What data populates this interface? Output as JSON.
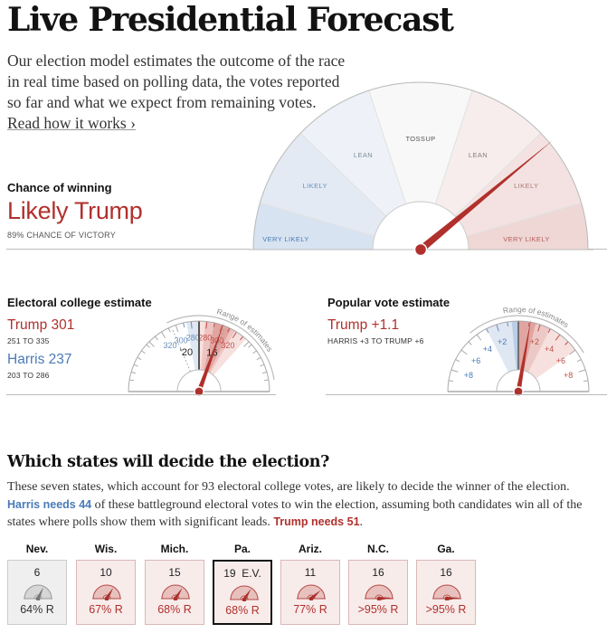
{
  "header": {
    "title": "Live Presidential Forecast",
    "intro": "Our election model estimates the outcome of the race in real time based on polling data, the votes reported so far and what we expect from remaining votes.",
    "read_link": "Read how it works ›"
  },
  "chance": {
    "label": "Chance of winning",
    "value": "Likely Trump",
    "subtitle": "89% CHANCE OF VICTORY",
    "trump_probability": 0.89,
    "gauge_sections": [
      "VERY LIKELY",
      "LIKELY",
      "LEAN",
      "TOSSUP",
      "LEAN",
      "LIKELY",
      "VERY LIKELY"
    ]
  },
  "electoral": {
    "label": "Electoral college estimate",
    "trump": "Trump 301",
    "trump_range": "251 TO 335",
    "harris": "Harris 237",
    "harris_range": "203 TO 286",
    "range_label": "Range of estimates",
    "ticks_harris": [
      "280",
      "300",
      "320"
    ],
    "ticks_trump": [
      "280",
      "300",
      "320"
    ],
    "marker_2020": "'20",
    "marker_2016": "16",
    "trump_estimate": 301,
    "trump_low": 251,
    "trump_high": 335
  },
  "popular": {
    "label": "Popular vote estimate",
    "trump": "Trump +1.1",
    "range": "HARRIS +3 TO TRUMP +6",
    "range_label": "Range of estimates",
    "ticks_harris": [
      "+2",
      "+4",
      "+6",
      "+8"
    ],
    "ticks_trump": [
      "+2",
      "+4",
      "+6",
      "+8"
    ],
    "estimate": 1.1,
    "low": -3,
    "high": 6
  },
  "states_section": {
    "title": "Which states will decide the election?",
    "desc_1": "These seven states, which account for 93 electoral college votes, are likely to decide the winner of the election. ",
    "harris_needs": "Harris needs 44",
    "desc_2": " of these battleground electoral votes to win the election, assuming both candidates win all of the states where polls show them with significant leads. ",
    "trump_needs": "Trump needs 51",
    "desc_3": "."
  },
  "states": [
    {
      "name": "Nev.",
      "ev": "6",
      "pct": "64% R",
      "prob": 0.64,
      "style": "grey"
    },
    {
      "name": "Wis.",
      "ev": "10",
      "pct": "67% R",
      "prob": 0.67,
      "style": "red"
    },
    {
      "name": "Mich.",
      "ev": "15",
      "pct": "68% R",
      "prob": 0.68,
      "style": "red"
    },
    {
      "name": "Pa.",
      "ev": "19  E.V.",
      "pct": "68% R",
      "prob": 0.68,
      "style": "selected"
    },
    {
      "name": "Ariz.",
      "ev": "11",
      "pct": "77% R",
      "prob": 0.77,
      "style": "red"
    },
    {
      "name": "N.C.",
      "ev": "16",
      "pct": ">95% R",
      "prob": 0.98,
      "style": "red"
    },
    {
      "name": "Ga.",
      "ev": "16",
      "pct": ">95% R",
      "prob": 0.98,
      "style": "red"
    }
  ]
}
